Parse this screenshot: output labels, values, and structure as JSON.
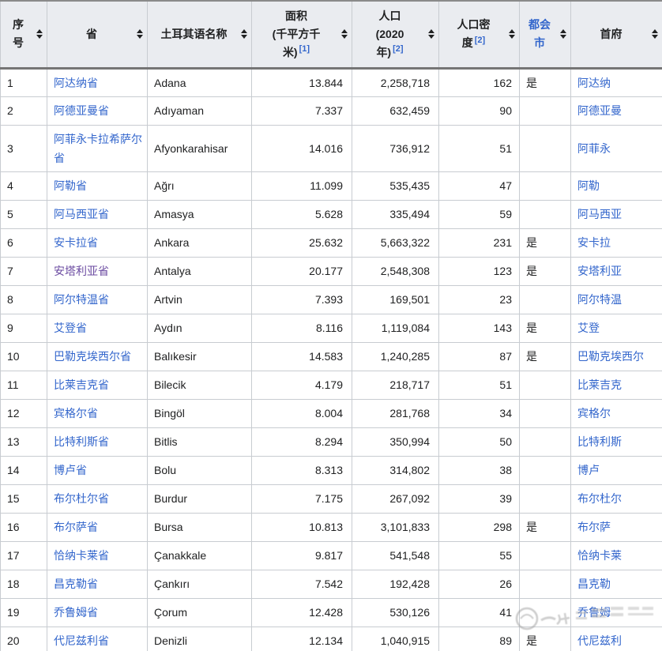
{
  "colors": {
    "link": "#3366cc",
    "visited_link": "#6b4ba1",
    "header_bg": "#eaecf0",
    "cell_border": "#c8ccd1",
    "header_heavy_border": "#757575",
    "text": "#202122"
  },
  "icons": {
    "sort": "sort-arrows (stacked up/down triangles)"
  },
  "table": {
    "headers": [
      {
        "id": "num",
        "lines": [
          "序",
          "号"
        ]
      },
      {
        "id": "province",
        "lines": [
          "省"
        ]
      },
      {
        "id": "turkish",
        "lines": [
          "土耳其语名称"
        ]
      },
      {
        "id": "area",
        "lines": [
          "面积",
          "(千平方千",
          "米)"
        ],
        "ref": "[1]"
      },
      {
        "id": "population",
        "lines": [
          "人口",
          "(2020",
          "年)"
        ],
        "ref": "[2]"
      },
      {
        "id": "density",
        "lines": [
          "人口密",
          "度"
        ],
        "ref": "[2]"
      },
      {
        "id": "metro",
        "lines": [
          "都会",
          "市"
        ],
        "link": true
      },
      {
        "id": "capital",
        "lines": [
          "首府"
        ]
      }
    ],
    "rows": [
      {
        "num": "1",
        "province": "阿达纳省",
        "visited": false,
        "turkish": "Adana",
        "area": "13.844",
        "population": "2,258,718",
        "density": "162",
        "metro": "是",
        "capital": "阿达纳"
      },
      {
        "num": "2",
        "province": "阿德亚曼省",
        "visited": false,
        "turkish": "Adıyaman",
        "area": "7.337",
        "population": "632,459",
        "density": "90",
        "metro": "",
        "capital": "阿德亚曼"
      },
      {
        "num": "3",
        "province": "阿菲永卡拉希萨尔省",
        "visited": false,
        "turkish": "Afyonkarahisar",
        "area": "14.016",
        "population": "736,912",
        "density": "51",
        "metro": "",
        "capital": "阿菲永"
      },
      {
        "num": "4",
        "province": "阿勒省",
        "visited": false,
        "turkish": "Ağrı",
        "area": "11.099",
        "population": "535,435",
        "density": "47",
        "metro": "",
        "capital": "阿勒"
      },
      {
        "num": "5",
        "province": "阿马西亚省",
        "visited": false,
        "turkish": "Amasya",
        "area": "5.628",
        "population": "335,494",
        "density": "59",
        "metro": "",
        "capital": "阿马西亚"
      },
      {
        "num": "6",
        "province": "安卡拉省",
        "visited": false,
        "turkish": "Ankara",
        "area": "25.632",
        "population": "5,663,322",
        "density": "231",
        "metro": "是",
        "capital": "安卡拉"
      },
      {
        "num": "7",
        "province": "安塔利亚省",
        "visited": true,
        "turkish": "Antalya",
        "area": "20.177",
        "population": "2,548,308",
        "density": "123",
        "metro": "是",
        "capital": "安塔利亚"
      },
      {
        "num": "8",
        "province": "阿尔特温省",
        "visited": false,
        "turkish": "Artvin",
        "area": "7.393",
        "population": "169,501",
        "density": "23",
        "metro": "",
        "capital": "阿尔特温"
      },
      {
        "num": "9",
        "province": "艾登省",
        "visited": false,
        "turkish": "Aydın",
        "area": "8.116",
        "population": "1,119,084",
        "density": "143",
        "metro": "是",
        "capital": "艾登"
      },
      {
        "num": "10",
        "province": "巴勒克埃西尔省",
        "visited": false,
        "turkish": "Balıkesir",
        "area": "14.583",
        "population": "1,240,285",
        "density": "87",
        "metro": "是",
        "capital": "巴勒克埃西尔"
      },
      {
        "num": "11",
        "province": "比莱吉克省",
        "visited": false,
        "turkish": "Bilecik",
        "area": "4.179",
        "population": "218,717",
        "density": "51",
        "metro": "",
        "capital": "比莱吉克"
      },
      {
        "num": "12",
        "province": "宾格尔省",
        "visited": false,
        "turkish": "Bingöl",
        "area": "8.004",
        "population": "281,768",
        "density": "34",
        "metro": "",
        "capital": "宾格尔"
      },
      {
        "num": "13",
        "province": "比特利斯省",
        "visited": false,
        "turkish": "Bitlis",
        "area": "8.294",
        "population": "350,994",
        "density": "50",
        "metro": "",
        "capital": "比特利斯"
      },
      {
        "num": "14",
        "province": "博卢省",
        "visited": false,
        "turkish": "Bolu",
        "area": "8.313",
        "population": "314,802",
        "density": "38",
        "metro": "",
        "capital": "博卢"
      },
      {
        "num": "15",
        "province": "布尔杜尔省",
        "visited": false,
        "turkish": "Burdur",
        "area": "7.175",
        "population": "267,092",
        "density": "39",
        "metro": "",
        "capital": "布尔杜尔"
      },
      {
        "num": "16",
        "province": "布尔萨省",
        "visited": false,
        "turkish": "Bursa",
        "area": "10.813",
        "population": "3,101,833",
        "density": "298",
        "metro": "是",
        "capital": "布尔萨"
      },
      {
        "num": "17",
        "province": "恰纳卡莱省",
        "visited": false,
        "turkish": "Çanakkale",
        "area": "9.817",
        "population": "541,548",
        "density": "55",
        "metro": "",
        "capital": "恰纳卡莱"
      },
      {
        "num": "18",
        "province": "昌克勒省",
        "visited": false,
        "turkish": "Çankırı",
        "area": "7.542",
        "population": "192,428",
        "density": "26",
        "metro": "",
        "capital": "昌克勒"
      },
      {
        "num": "19",
        "province": "乔鲁姆省",
        "visited": false,
        "turkish": "Çorum",
        "area": "12.428",
        "population": "530,126",
        "density": "41",
        "metro": "",
        "capital": "乔鲁姆"
      },
      {
        "num": "20",
        "province": "代尼兹利省",
        "visited": false,
        "turkish": "Denizli",
        "area": "12.134",
        "population": "1,040,915",
        "density": "89",
        "metro": "是",
        "capital": "代尼兹利"
      }
    ]
  }
}
